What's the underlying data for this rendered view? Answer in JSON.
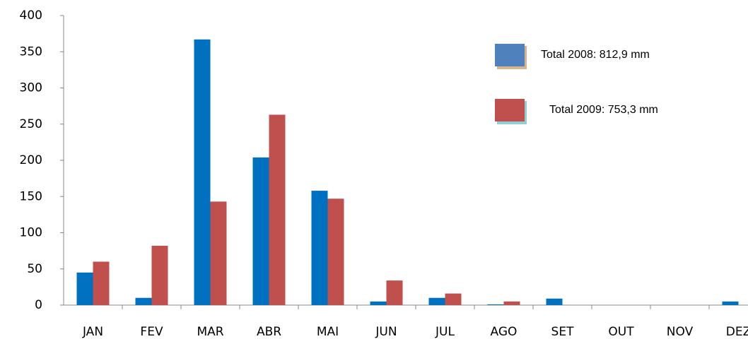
{
  "chart_data": {
    "type": "bar",
    "categories": [
      "JAN",
      "FEV",
      "MAR",
      "ABR",
      "MAI",
      "JUN",
      "JUL",
      "AGO",
      "SET",
      "OUT",
      "NOV",
      "DEZ"
    ],
    "series": [
      {
        "name": "Total 2008: 812,9 mm",
        "color": "#0070c0",
        "values": [
          45,
          10,
          367,
          204,
          158,
          5,
          10,
          1,
          9,
          0,
          0,
          5
        ]
      },
      {
        "name": "Total 2009: 753,3 mm",
        "color": "#c0504d",
        "values": [
          60,
          82,
          143,
          263,
          147,
          34,
          16,
          5,
          0,
          0,
          0,
          0
        ]
      }
    ],
    "ylim": [
      0,
      400
    ],
    "yticks": [
      0,
      50,
      100,
      150,
      200,
      250,
      300,
      350,
      400
    ],
    "grid": false
  }
}
